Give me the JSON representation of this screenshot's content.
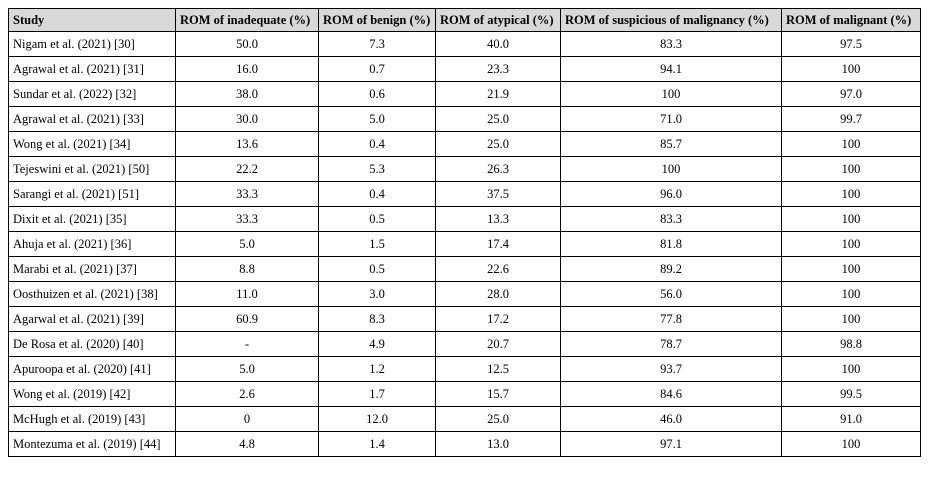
{
  "table": {
    "header": [
      "Study",
      "ROM of inadequate (%)",
      "ROM of benign (%)",
      "ROM of atypical (%)",
      "ROM of suspicious of malignancy (%)",
      "ROM of malignant (%)"
    ],
    "rows": [
      [
        "Nigam et al. (2021) [30]",
        "50.0",
        "7.3",
        "40.0",
        "83.3",
        "97.5"
      ],
      [
        "Agrawal et al. (2021) [31]",
        "16.0",
        "0.7",
        "23.3",
        "94.1",
        "100"
      ],
      [
        "Sundar et al. (2022) [32]",
        "38.0",
        "0.6",
        "21.9",
        "100",
        "97.0"
      ],
      [
        "Agrawal et al. (2021) [33]",
        "30.0",
        "5.0",
        "25.0",
        "71.0",
        "99.7"
      ],
      [
        "Wong et al. (2021) [34]",
        "13.6",
        "0.4",
        "25.0",
        "85.7",
        "100"
      ],
      [
        "Tejeswini et al. (2021) [50]",
        "22.2",
        "5.3",
        "26.3",
        "100",
        "100"
      ],
      [
        "Sarangi et al. (2021) [51]",
        "33.3",
        "0.4",
        "37.5",
        "96.0",
        "100"
      ],
      [
        "Dixit et al. (2021) [35]",
        "33.3",
        "0.5",
        "13.3",
        "83.3",
        "100"
      ],
      [
        "Ahuja et al. (2021) [36]",
        "5.0",
        "1.5",
        "17.4",
        "81.8",
        "100"
      ],
      [
        "Marabi et al. (2021) [37]",
        "8.8",
        "0.5",
        "22.6",
        "89.2",
        "100"
      ],
      [
        "Oosthuizen et al. (2021) [38]",
        "11.0",
        "3.0",
        "28.0",
        "56.0",
        "100"
      ],
      [
        "Agarwal et al. (2021) [39]",
        "60.9",
        "8.3",
        "17.2",
        "77.8",
        "100"
      ],
      [
        "De Rosa et al. (2020) [40]",
        "-",
        "4.9",
        "20.7",
        "78.7",
        "98.8"
      ],
      [
        "Apuroopa et al. (2020) [41]",
        "5.0",
        "1.2",
        "12.5",
        "93.7",
        "100"
      ],
      [
        "Wong et al. (2019) [42]",
        "2.6",
        "1.7",
        "15.7",
        "84.6",
        "99.5"
      ],
      [
        "McHugh et al. (2019) [43]",
        "0",
        "12.0",
        "25.0",
        "46.0",
        "91.0"
      ],
      [
        "Montezuma et al. (2019) [44]",
        "4.8",
        "1.4",
        "13.0",
        "97.1",
        "100"
      ]
    ]
  }
}
